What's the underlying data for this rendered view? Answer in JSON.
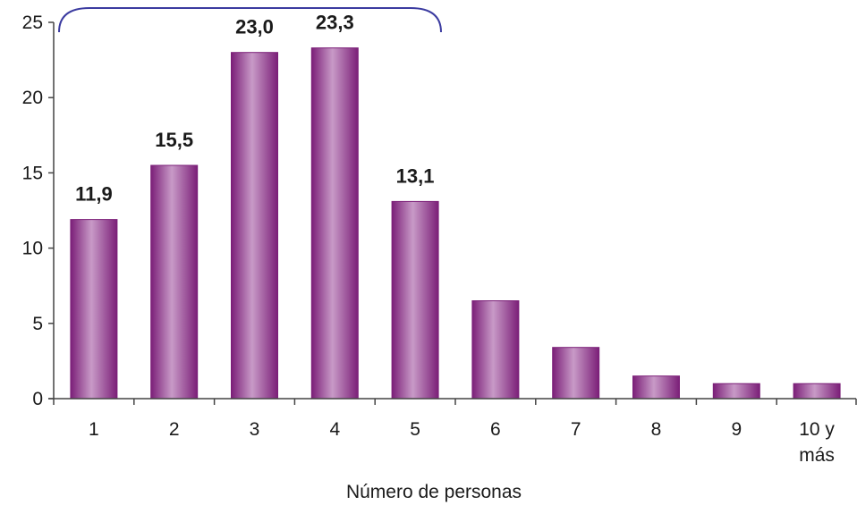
{
  "chart_data": {
    "type": "bar",
    "title": "",
    "xlabel": "Número de personas",
    "ylabel": "",
    "ylim": [
      0,
      25
    ],
    "yticks": [
      "0",
      "5",
      "10",
      "15",
      "20",
      "25"
    ],
    "grid": false,
    "legend": "none",
    "categories": [
      "1",
      "2",
      "3",
      "4",
      "5",
      "6",
      "7",
      "8",
      "9",
      "10 y más"
    ],
    "category_lines": [
      [
        "1"
      ],
      [
        "2"
      ],
      [
        "3"
      ],
      [
        "4"
      ],
      [
        "5"
      ],
      [
        "6"
      ],
      [
        "7"
      ],
      [
        "8"
      ],
      [
        "9"
      ],
      [
        "10 y",
        "más"
      ]
    ],
    "values": [
      11.9,
      15.5,
      23.0,
      23.3,
      13.1,
      6.5,
      3.4,
      1.5,
      1.0,
      1.0
    ],
    "data_labels": [
      "11,9",
      "15,5",
      "23,0",
      "23,3",
      "13,1",
      "",
      "",
      "",
      "",
      ""
    ],
    "bracket_over_categories": [
      "1",
      "5"
    ],
    "colors": {
      "bar_dark": "#7b1f78",
      "bar_light": "#c89ac7",
      "bracket": "#3b3ba0",
      "axis": "#444444"
    }
  }
}
